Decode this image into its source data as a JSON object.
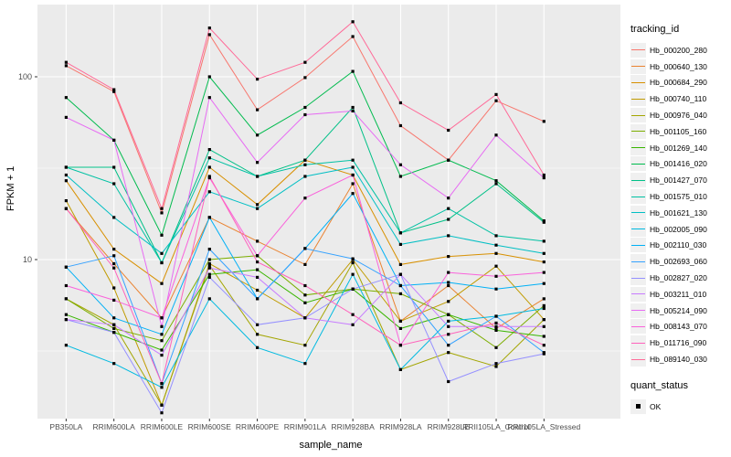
{
  "chart_data": {
    "type": "line",
    "title": "",
    "xlabel": "sample_name",
    "ylabel": "FPKM + 1",
    "x_scale": "categorical",
    "y_scale": "log10",
    "ylim": [
      1.35,
      250
    ],
    "yticks": [
      10,
      100
    ],
    "y_minor_breaks": [
      3.162,
      31.62
    ],
    "grid": "on",
    "legend_position": "right",
    "categories": [
      "PB350LA",
      "RRIM600LA",
      "RRIM600LE",
      "RRIM600SE",
      "RRIM600PE",
      "RRIM901LA",
      "RRIM928BA",
      "RRIM928LA",
      "RRIM928LE",
      "RRII105LA_Control",
      "RRII105LA_Stressed"
    ],
    "series": [
      {
        "name": "Hb_000200_280",
        "color": "#F8766D",
        "values": [
          115,
          83,
          18,
          170,
          66,
          99,
          166,
          54,
          35,
          74,
          57
        ]
      },
      {
        "name": "Hb_000640_130",
        "color": "#EA8331",
        "values": [
          19,
          9.5,
          4.8,
          17,
          12.6,
          9.4,
          26,
          4.6,
          7.2,
          4.2,
          6.1
        ]
      },
      {
        "name": "Hb_000684_290",
        "color": "#D89000",
        "values": [
          27,
          11.4,
          7.4,
          32,
          20,
          35,
          29,
          9.4,
          10.4,
          10.8,
          9.7
        ]
      },
      {
        "name": "Hb_000740_110",
        "color": "#C09B00",
        "values": [
          21,
          7.0,
          1.6,
          9.5,
          6.8,
          4.8,
          10,
          4.6,
          5.9,
          9.2,
          4.7
        ]
      },
      {
        "name": "Hb_000976_040",
        "color": "#A3A500",
        "values": [
          6.1,
          4.4,
          1.6,
          9.3,
          3.9,
          3.4,
          9.6,
          2.5,
          3.1,
          2.6,
          4.7
        ]
      },
      {
        "name": "Hb_001105_160",
        "color": "#7CAE00",
        "values": [
          6.1,
          4.2,
          3.6,
          10,
          10.5,
          6.4,
          6.9,
          6.5,
          5.0,
          3.3,
          5.6
        ]
      },
      {
        "name": "Hb_001269_140",
        "color": "#39B600",
        "values": [
          5.0,
          4.0,
          3.2,
          8.3,
          8.8,
          5.8,
          6.9,
          4.2,
          5.0,
          4.1,
          3.8
        ]
      },
      {
        "name": "Hb_001416_020",
        "color": "#00BB4E",
        "values": [
          77,
          45,
          13.6,
          100,
          48,
          68,
          107,
          28.5,
          35,
          27,
          16.3
        ]
      },
      {
        "name": "Hb_001427_070",
        "color": "#00C087",
        "values": [
          32,
          32,
          9.6,
          40,
          28.5,
          35,
          68,
          14,
          16.6,
          26,
          16
        ]
      },
      {
        "name": "Hb_001575_010",
        "color": "#00C1A3",
        "values": [
          32,
          26,
          9.6,
          36,
          28.5,
          33,
          35,
          14,
          19,
          13.5,
          12.6
        ]
      },
      {
        "name": "Hb_001621_130",
        "color": "#00BFC4",
        "values": [
          29,
          17,
          10.8,
          23.5,
          19,
          28.5,
          32,
          12.1,
          13.5,
          12,
          10.8
        ]
      },
      {
        "name": "Hb_002005_090",
        "color": "#00BAE0",
        "values": [
          3.4,
          2.7,
          2.0,
          6.1,
          3.3,
          2.7,
          8.3,
          2.5,
          4.6,
          4.9,
          5.4
        ]
      },
      {
        "name": "Hb_002110_030",
        "color": "#00B0F6",
        "values": [
          9.1,
          4.8,
          3.9,
          17,
          6.1,
          11.5,
          23,
          7.2,
          7.5,
          6.9,
          7.4
        ]
      },
      {
        "name": "Hb_002693_060",
        "color": "#35A2FF",
        "values": [
          9.1,
          10.5,
          2.1,
          11.4,
          6.1,
          11.5,
          10.1,
          7.2,
          3.4,
          4.9,
          3.1
        ]
      },
      {
        "name": "Hb_002827_020",
        "color": "#9590FF",
        "values": [
          4.7,
          4.0,
          1.45,
          8.0,
          4.4,
          4.8,
          6.9,
          8.3,
          2.15,
          2.7,
          3.05
        ]
      },
      {
        "name": "Hb_003211_010",
        "color": "#C77CFF",
        "values": [
          4.7,
          4.4,
          3.0,
          9.0,
          8.0,
          4.8,
          4.4,
          8.3,
          4.3,
          4.3,
          4.3
        ]
      },
      {
        "name": "Hb_005214_090",
        "color": "#E76BF3",
        "values": [
          60,
          45,
          4.3,
          77,
          34,
          62,
          65,
          33,
          21.7,
          48,
          28
        ]
      },
      {
        "name": "Hb_008143_070",
        "color": "#FA62DB",
        "values": [
          7.2,
          6.0,
          4.8,
          28,
          10.5,
          21.7,
          29,
          3.4,
          8.5,
          8.1,
          8.5
        ]
      },
      {
        "name": "Hb_011716_090",
        "color": "#FF62BC",
        "values": [
          19,
          9.0,
          2.1,
          28.5,
          9.7,
          7.2,
          5.0,
          3.4,
          3.9,
          4.5,
          3.4
        ]
      },
      {
        "name": "Hb_089140_030",
        "color": "#FF6A98",
        "values": [
          120,
          85,
          19,
          185,
          97,
          120,
          200,
          72,
          51,
          80,
          29
        ]
      }
    ]
  },
  "legend": {
    "tracking_title": "tracking_id",
    "quant_title": "quant_status",
    "quant_items": [
      {
        "label": "OK",
        "symbol": "black-square"
      }
    ]
  },
  "style": {
    "panel_background": "#EBEBEB",
    "grid_color": "#FFFFFF",
    "tick_color": "#333333",
    "tick_label_color": "#4D4D4D",
    "point_color": "#000000",
    "legend_key_background": "#F0F0F0"
  }
}
